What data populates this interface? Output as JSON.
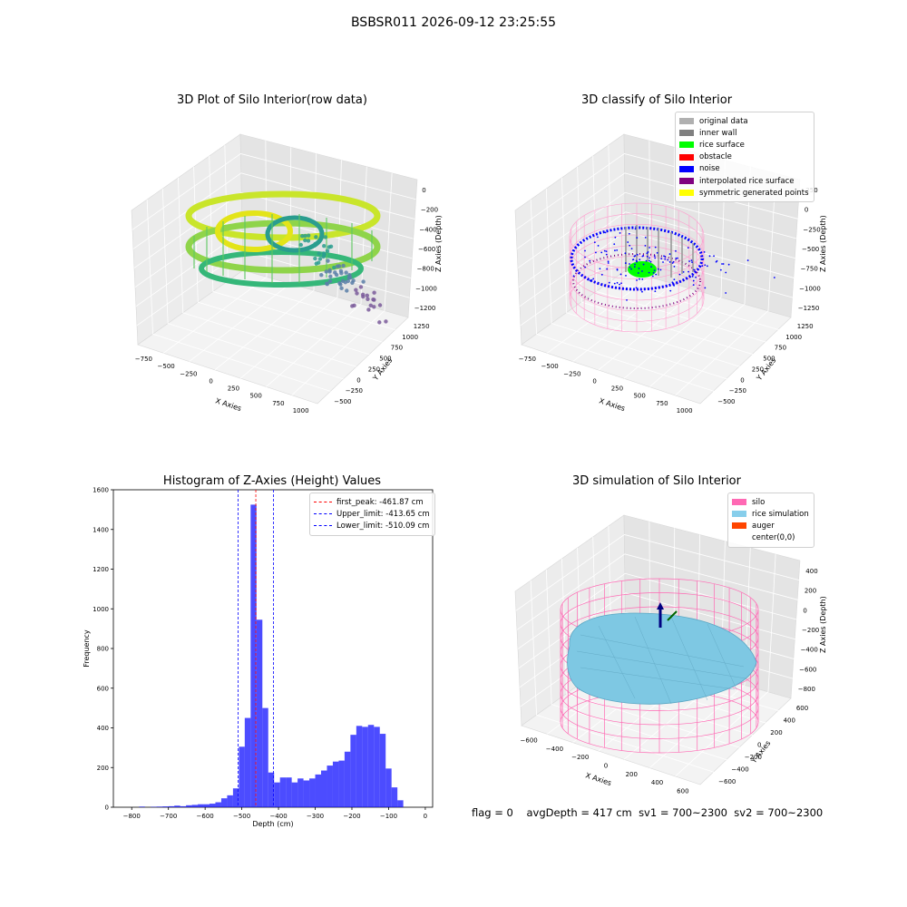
{
  "figure": {
    "suptitle": "BSBSR011 2026-09-12 23:25:55",
    "status": {
      "flag": "flag = 0",
      "avg_depth": "avgDepth = 417 cm",
      "sv1": "sv1 = 700~2300",
      "sv2": "sv2 = 700~2300"
    }
  },
  "panels": {
    "raw": {
      "title": "3D Plot of Silo Interior(row data)",
      "xlabel": "X Axies",
      "ylabel": "Y Axies",
      "zlabel": "Z Axies (Depth)",
      "xticks": [
        "−750",
        "−500",
        "−250",
        "0",
        "250",
        "500",
        "750",
        "1000"
      ],
      "yticks": [
        "−500",
        "−250",
        "0",
        "250",
        "500",
        "750",
        "1000",
        "1250"
      ],
      "zticks": [
        "0",
        "−200",
        "−400",
        "−600",
        "−800",
        "−1000",
        "−1200"
      ]
    },
    "classify": {
      "title": "3D classify of Silo Interior",
      "xlabel": "X Axies",
      "ylabel": "Y Axies",
      "zlabel": "Z Axies (Depth)",
      "xticks": [
        "−750",
        "−500",
        "−250",
        "0",
        "250",
        "500",
        "750",
        "1000"
      ],
      "yticks": [
        "−500",
        "−250",
        "0",
        "250",
        "500",
        "750",
        "1000",
        "1250"
      ],
      "zticks": [
        "250",
        "0",
        "−250",
        "−500",
        "−750",
        "−1000",
        "−1250"
      ],
      "legend": [
        {
          "label": "original data",
          "color": "#b0b0b0"
        },
        {
          "label": "inner wall",
          "color": "#808080"
        },
        {
          "label": "rice surface",
          "color": "#00ff00"
        },
        {
          "label": "obstacle",
          "color": "#ff0000"
        },
        {
          "label": "noise",
          "color": "#0000ff"
        },
        {
          "label": "interpolated rice surface",
          "color": "#800080"
        },
        {
          "label": "symmetric generated points",
          "color": "#ffff00"
        }
      ]
    },
    "simulation": {
      "title": "3D simulation of Silo Interior",
      "xlabel": "X Axies",
      "ylabel": "Y Axies",
      "zlabel": "Z Axies (Depth)",
      "xticks": [
        "−600",
        "−400",
        "−200",
        "0",
        "200",
        "400",
        "600"
      ],
      "yticks": [
        "−600",
        "−400",
        "−200",
        "0",
        "200",
        "400",
        "600"
      ],
      "zticks": [
        "400",
        "200",
        "0",
        "−200",
        "−400",
        "−600",
        "−800"
      ],
      "legend": [
        {
          "label": "silo",
          "color": "#ff69b4"
        },
        {
          "label": "rice simulation",
          "color": "#87ceeb"
        },
        {
          "label": "auger",
          "color": "#ff4500"
        },
        {
          "label": "center(0,0)",
          "color": "none"
        }
      ]
    }
  },
  "chart_data": [
    {
      "type": "scatter",
      "title": "3D Plot of Silo Interior(row data)",
      "xlabel": "X Axies",
      "ylabel": "Y Axies",
      "zlabel": "Z Axies (Depth)",
      "xlim": [
        -900,
        1100
      ],
      "ylim": [
        -600,
        1350
      ],
      "zlim": [
        -1300,
        0
      ]
    },
    {
      "type": "scatter",
      "title": "3D classify of Silo Interior",
      "xlabel": "X Axies",
      "ylabel": "Y Axies",
      "zlabel": "Z Axies (Depth)",
      "xlim": [
        -900,
        1100
      ],
      "ylim": [
        -600,
        1350
      ],
      "zlim": [
        -1350,
        300
      ],
      "series": [
        {
          "name": "original data"
        },
        {
          "name": "inner wall"
        },
        {
          "name": "rice surface"
        },
        {
          "name": "obstacle"
        },
        {
          "name": "noise"
        },
        {
          "name": "interpolated rice surface"
        },
        {
          "name": "symmetric generated points"
        }
      ]
    },
    {
      "type": "bar",
      "title": "Histogram of Z-Axies (Height) Values",
      "xlabel": "Depth (cm)",
      "ylabel": "Frequency",
      "xlim": [
        -850,
        20
      ],
      "ylim": [
        0,
        1600
      ],
      "xticks": [
        -800,
        -700,
        -600,
        -500,
        -400,
        -300,
        -200,
        -100,
        0
      ],
      "yticks": [
        0,
        200,
        400,
        600,
        800,
        1000,
        1200,
        1400,
        1600
      ],
      "bar_color": "#0000ff",
      "bin_width": 16,
      "bin_starts": [
        -780,
        -764,
        -748,
        -732,
        -716,
        -700,
        -684,
        -668,
        -652,
        -636,
        -620,
        -604,
        -588,
        -572,
        -556,
        -540,
        -524,
        -508,
        -492,
        -476,
        -460,
        -444,
        -428,
        -412,
        -396,
        -380,
        -364,
        -348,
        -332,
        -316,
        -300,
        -284,
        -268,
        -252,
        -236,
        -220,
        -204,
        -188,
        -172,
        -156,
        -140,
        -124,
        -108,
        -92,
        -76,
        -60,
        -44,
        -28
      ],
      "counts": [
        3,
        0,
        2,
        3,
        4,
        5,
        8,
        5,
        10,
        12,
        15,
        15,
        18,
        25,
        45,
        60,
        95,
        305,
        450,
        1525,
        945,
        500,
        175,
        125,
        150,
        150,
        125,
        145,
        135,
        145,
        165,
        185,
        210,
        230,
        235,
        280,
        365,
        410,
        405,
        415,
        405,
        370,
        195,
        100,
        35,
        0,
        0,
        0
      ],
      "reference_lines": [
        {
          "label": "first_peak: -461.87 cm",
          "value": -461.87,
          "color": "#ff0000"
        },
        {
          "label": "Upper_limit: -413.65 cm",
          "value": -413.65,
          "color": "#0000ff"
        },
        {
          "label": "Lower_limit: -510.09 cm",
          "value": -510.09,
          "color": "#0000ff"
        }
      ]
    },
    {
      "type": "surface",
      "title": "3D simulation of Silo Interior",
      "xlabel": "X Axies",
      "ylabel": "Y Axies",
      "zlabel": "Z Axies (Depth)",
      "xlim": [
        -650,
        650
      ],
      "ylim": [
        -650,
        650
      ],
      "zlim": [
        -900,
        500
      ],
      "series": [
        {
          "name": "silo"
        },
        {
          "name": "rice simulation"
        },
        {
          "name": "auger"
        },
        {
          "name": "center(0,0)"
        }
      ]
    }
  ]
}
